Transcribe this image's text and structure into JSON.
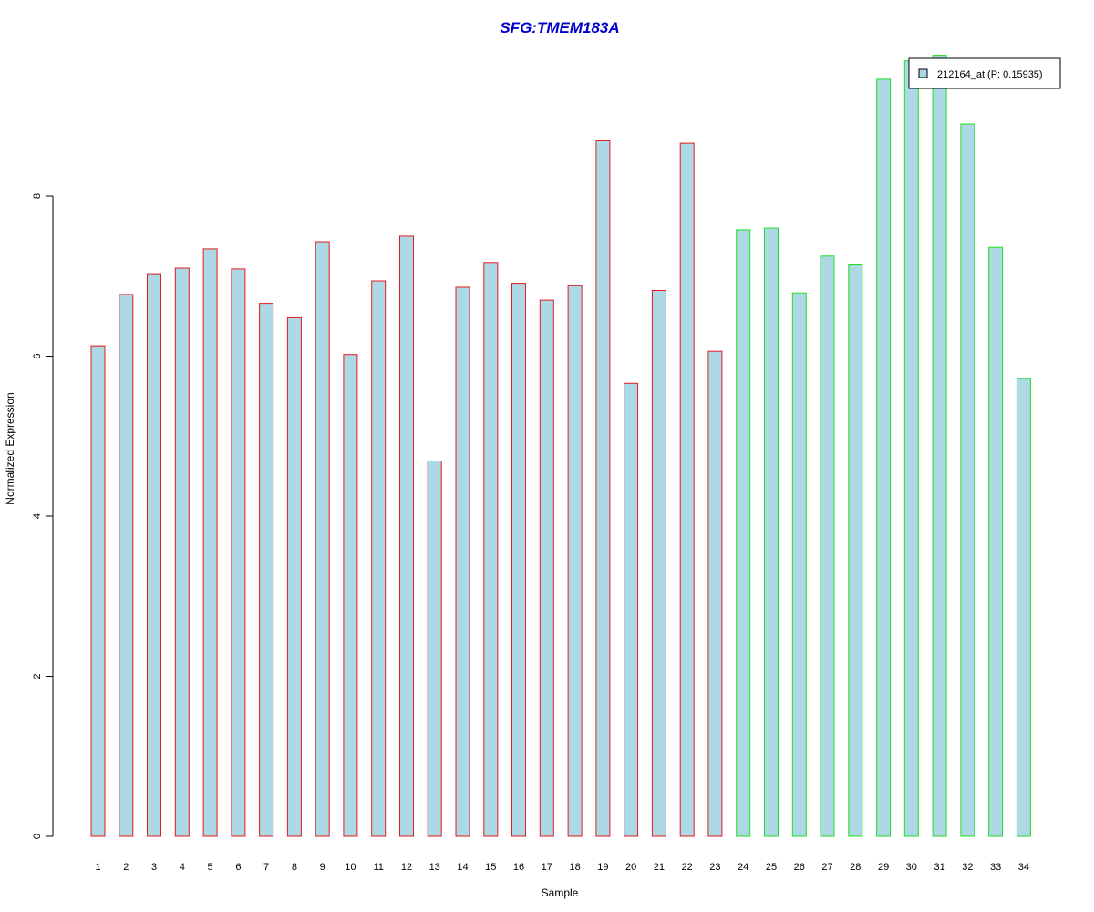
{
  "chart_data": {
    "type": "bar",
    "title": "SFG:TMEM183A",
    "xlabel": "Sample",
    "ylabel": "Normalized Expression",
    "categories": [
      "1",
      "2",
      "3",
      "4",
      "5",
      "6",
      "7",
      "8",
      "9",
      "10",
      "11",
      "12",
      "13",
      "14",
      "15",
      "16",
      "17",
      "18",
      "19",
      "20",
      "21",
      "22",
      "23",
      "24",
      "25",
      "26",
      "27",
      "28",
      "29",
      "30",
      "31",
      "32",
      "33",
      "34"
    ],
    "series": [
      {
        "name": "212164_at (P: 0.15935)",
        "values": [
          6.13,
          6.77,
          7.03,
          7.1,
          7.34,
          7.09,
          6.66,
          6.48,
          7.43,
          6.02,
          6.94,
          7.5,
          4.69,
          6.86,
          7.17,
          6.91,
          6.7,
          6.88,
          8.69,
          5.66,
          6.82,
          8.66,
          6.06,
          7.58,
          7.6,
          6.79,
          7.25,
          7.14,
          9.46,
          9.69,
          9.76,
          8.9,
          7.36,
          5.72
        ]
      }
    ],
    "groups": [
      {
        "samples": "1-23",
        "border_color": "#e41a1c"
      },
      {
        "samples": "24-34",
        "border_color": "#1ee01e"
      }
    ],
    "bar_fill": "#add8e6",
    "title_color": "#0000cc",
    "yticks": [
      0,
      2,
      4,
      6,
      8
    ],
    "ylim": [
      0,
      9.8
    ],
    "grid": false,
    "legend_position": "top-right",
    "legend_label": "212164_at (P: 0.15935)"
  }
}
